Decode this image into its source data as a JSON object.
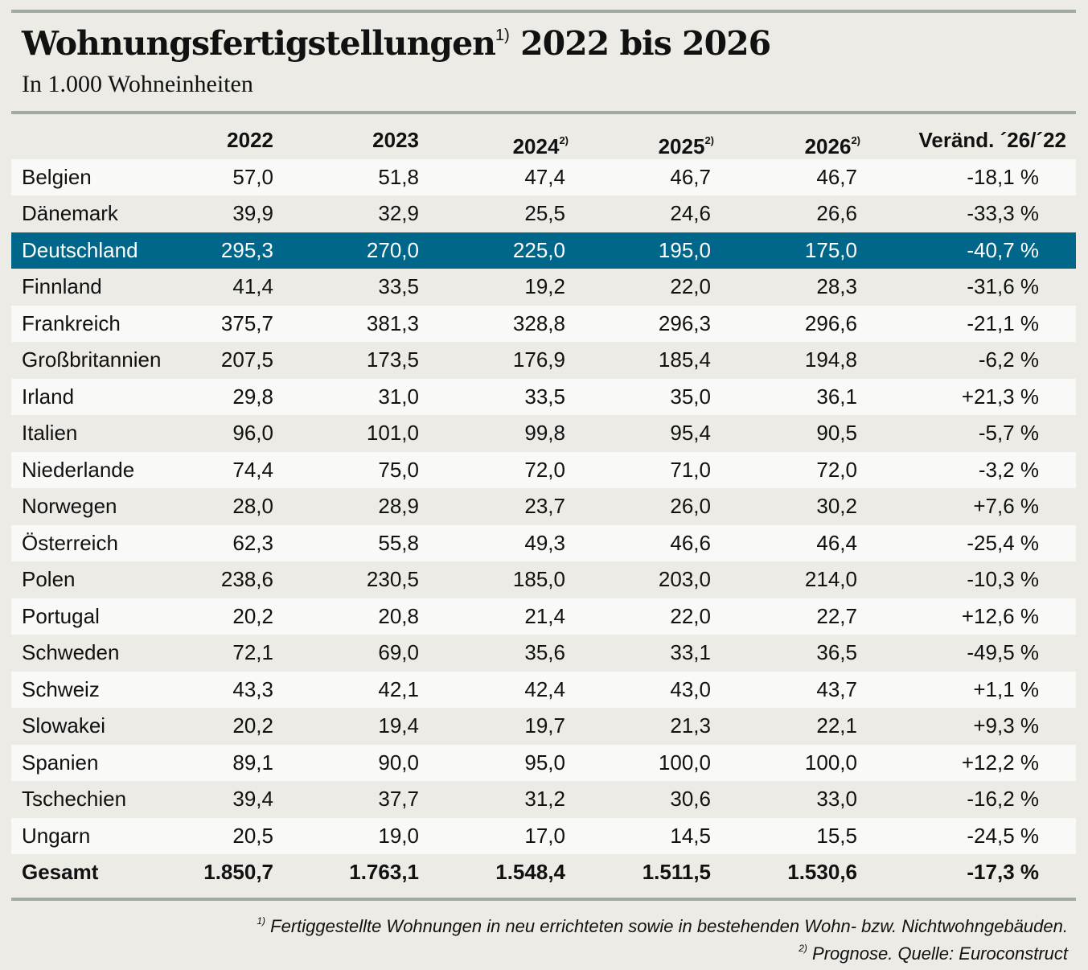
{
  "title": "Wohnungsfertigstellungen",
  "title_footnote": "1)",
  "title_years": "2022 bis 2026",
  "subtitle": "In 1.000 Wohneinheiten",
  "highlight_color": "#00678a",
  "footnotes": [
    {
      "mark": "1)",
      "text": "Fertiggestellte Wohnungen in neu errichteten sowie in bestehenden Wohn- bzw. Nichtwohngebäuden."
    },
    {
      "mark": "2)",
      "text": "Prognose. Quelle: Euroconstruct"
    }
  ],
  "chart_data": {
    "type": "table",
    "title": "Wohnungsfertigstellungen 2022 bis 2026",
    "unit": "In 1.000 Wohneinheiten",
    "columns": [
      {
        "label": "2022",
        "note": ""
      },
      {
        "label": "2023",
        "note": ""
      },
      {
        "label": "2024",
        "note": "2)"
      },
      {
        "label": "2025",
        "note": "2)"
      },
      {
        "label": "2026",
        "note": "2)"
      },
      {
        "label": "Veränd. ´26/´22",
        "note": ""
      }
    ],
    "rows": [
      {
        "name": "Belgien",
        "values": [
          "57,0",
          "51,8",
          "47,4",
          "46,7",
          "46,7",
          "-18,1 %"
        ]
      },
      {
        "name": "Dänemark",
        "values": [
          "39,9",
          "32,9",
          "25,5",
          "24,6",
          "26,6",
          "-33,3 %"
        ]
      },
      {
        "name": "Deutschland",
        "values": [
          "295,3",
          "270,0",
          "225,0",
          "195,0",
          "175,0",
          "-40,7 %"
        ],
        "highlight": true
      },
      {
        "name": "Finnland",
        "values": [
          "41,4",
          "33,5",
          "19,2",
          "22,0",
          "28,3",
          "-31,6 %"
        ]
      },
      {
        "name": "Frankreich",
        "values": [
          "375,7",
          "381,3",
          "328,8",
          "296,3",
          "296,6",
          "-21,1 %"
        ]
      },
      {
        "name": "Großbritannien",
        "values": [
          "207,5",
          "173,5",
          "176,9",
          "185,4",
          "194,8",
          "-6,2 %"
        ]
      },
      {
        "name": "Irland",
        "values": [
          "29,8",
          "31,0",
          "33,5",
          "35,0",
          "36,1",
          "+21,3 %"
        ]
      },
      {
        "name": "Italien",
        "values": [
          "96,0",
          "101,0",
          "99,8",
          "95,4",
          "90,5",
          "-5,7 %"
        ]
      },
      {
        "name": "Niederlande",
        "values": [
          "74,4",
          "75,0",
          "72,0",
          "71,0",
          "72,0",
          "-3,2 %"
        ]
      },
      {
        "name": "Norwegen",
        "values": [
          "28,0",
          "28,9",
          "23,7",
          "26,0",
          "30,2",
          "+7,6 %"
        ]
      },
      {
        "name": "Österreich",
        "values": [
          "62,3",
          "55,8",
          "49,3",
          "46,6",
          "46,4",
          "-25,4 %"
        ]
      },
      {
        "name": "Polen",
        "values": [
          "238,6",
          "230,5",
          "185,0",
          "203,0",
          "214,0",
          "-10,3 %"
        ]
      },
      {
        "name": "Portugal",
        "values": [
          "20,2",
          "20,8",
          "21,4",
          "22,0",
          "22,7",
          "+12,6 %"
        ]
      },
      {
        "name": "Schweden",
        "values": [
          "72,1",
          "69,0",
          "35,6",
          "33,1",
          "36,5",
          "-49,5 %"
        ]
      },
      {
        "name": "Schweiz",
        "values": [
          "43,3",
          "42,1",
          "42,4",
          "43,0",
          "43,7",
          "+1,1 %"
        ]
      },
      {
        "name": "Slowakei",
        "values": [
          "20,2",
          "19,4",
          "19,7",
          "21,3",
          "22,1",
          "+9,3 %"
        ]
      },
      {
        "name": "Spanien",
        "values": [
          "89,1",
          "90,0",
          "95,0",
          "100,0",
          "100,0",
          "+12,2 %"
        ]
      },
      {
        "name": "Tschechien",
        "values": [
          "39,4",
          "37,7",
          "31,2",
          "30,6",
          "33,0",
          "-16,2 %"
        ]
      },
      {
        "name": "Ungarn",
        "values": [
          "20,5",
          "19,0",
          "17,0",
          "14,5",
          "15,5",
          "-24,5 %"
        ]
      },
      {
        "name": "Gesamt",
        "values": [
          "1.850,7",
          "1.763,1",
          "1.548,4",
          "1.511,5",
          "1.530,6",
          "-17,3 %"
        ],
        "bold": true
      }
    ]
  }
}
